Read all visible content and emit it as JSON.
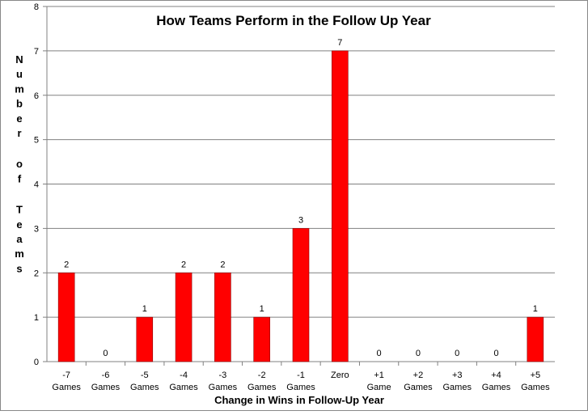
{
  "chart_data": {
    "type": "bar",
    "title": "How Teams Perform in the Follow Up Year",
    "xlabel": "Change in Wins in Follow-Up Year",
    "ylabel": "Number of Teams",
    "ylim": [
      0,
      8
    ],
    "yticks": [
      "0",
      "1",
      "2",
      "3",
      "4",
      "5",
      "6",
      "7",
      "8"
    ],
    "grid": true,
    "legend": "none",
    "bar_color": "#ff0000",
    "categories": [
      [
        "-7",
        "Games"
      ],
      [
        "-6",
        "Games"
      ],
      [
        "-5",
        "Games"
      ],
      [
        "-4",
        "Games"
      ],
      [
        "-3",
        "Games"
      ],
      [
        "-2",
        "Games"
      ],
      [
        "-1",
        "Games"
      ],
      [
        "Zero"
      ],
      [
        "+1",
        "Game"
      ],
      [
        "+2",
        "Games"
      ],
      [
        "+3",
        "Games"
      ],
      [
        "+4",
        "Games"
      ],
      [
        "+5",
        "Games"
      ]
    ],
    "values": [
      2,
      0,
      1,
      2,
      2,
      1,
      3,
      7,
      0,
      0,
      0,
      0,
      1
    ]
  }
}
